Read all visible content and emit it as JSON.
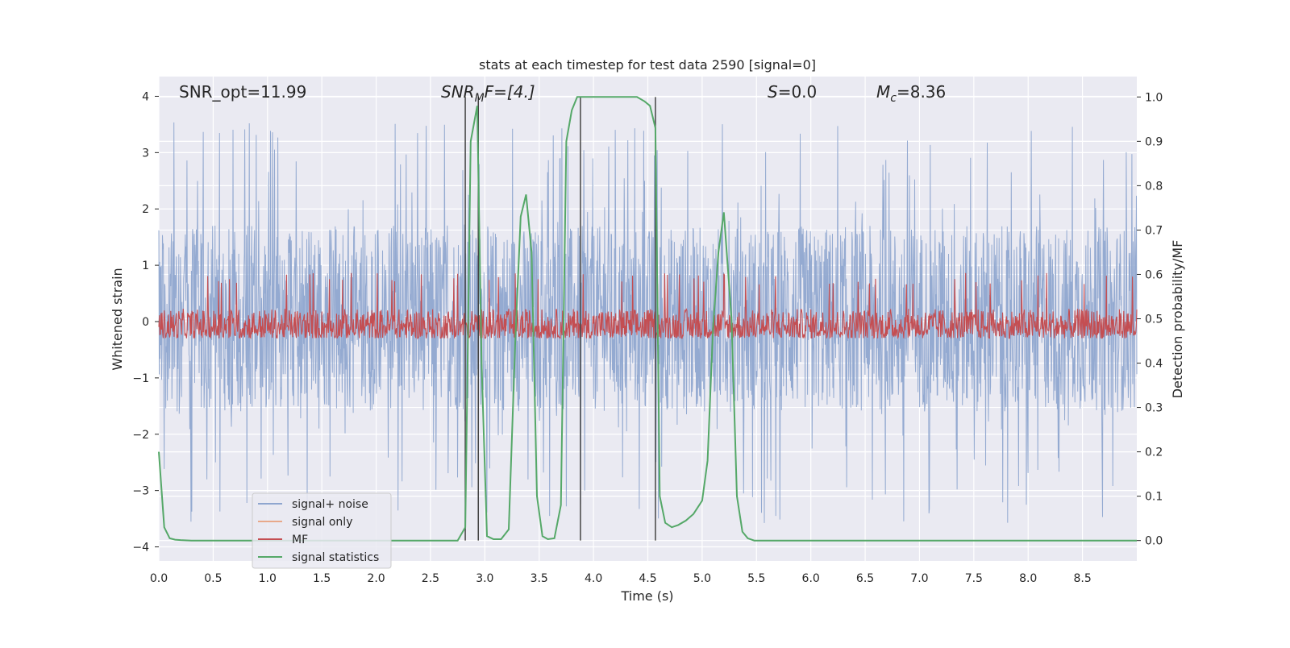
{
  "chart_data": {
    "type": "line",
    "title": "stats at each timestep for test data 2590 [signal=0]",
    "xlabel": "Time (s)",
    "ylabel": "Whitened strain",
    "y2label": "Detection probability/MF",
    "xlim": [
      0.0,
      9.0
    ],
    "ylim": [
      -4.25,
      4.35
    ],
    "y2lim": [
      -0.046,
      1.046
    ],
    "xticks": [
      "0.0",
      "0.5",
      "1.0",
      "1.5",
      "2.0",
      "2.5",
      "3.0",
      "3.5",
      "4.0",
      "4.5",
      "5.0",
      "5.5",
      "6.0",
      "6.5",
      "7.0",
      "7.5",
      "8.0",
      "8.5"
    ],
    "xtick_values": [
      0.0,
      0.5,
      1.0,
      1.5,
      2.0,
      2.5,
      3.0,
      3.5,
      4.0,
      4.5,
      5.0,
      5.5,
      6.0,
      6.5,
      7.0,
      7.5,
      8.0,
      8.5
    ],
    "yticks": [
      "4",
      "3",
      "2",
      "1",
      "0",
      "−1",
      "−2",
      "−3",
      "−4"
    ],
    "ytick_values": [
      4,
      3,
      2,
      1,
      0,
      -1,
      -2,
      -3,
      -4
    ],
    "y2ticks": [
      "1.0",
      "0.9",
      "0.8",
      "0.7",
      "0.6",
      "0.5",
      "0.4",
      "0.3",
      "0.2",
      "0.1",
      "0.0"
    ],
    "y2tick_values": [
      1.0,
      0.9,
      0.8,
      0.7,
      0.6,
      0.5,
      0.4,
      0.3,
      0.2,
      0.1,
      0.0
    ],
    "grid": true,
    "legend_position": "lower-left",
    "annotations": {
      "snr_opt": "SNR_opt=11.99",
      "snr_mf_main": "SNR",
      "snr_mf_sub": "M",
      "snr_mf_rest": "F=[4.]",
      "s_var": "S",
      "s_rest": "=0.0",
      "mc_main": "M",
      "mc_sub": "c",
      "mc_rest": "=8.36"
    },
    "vlines": [
      2.82,
      2.94,
      3.88,
      4.57
    ],
    "series": [
      {
        "name": "signal+ noise",
        "color": "#8fa6cf",
        "envelope": {
          "min": -3.6,
          "max": 3.55,
          "typical_low": -1.6,
          "typical_high": 1.7
        }
      },
      {
        "name": "signal only",
        "color": "#e8a98a",
        "values": []
      },
      {
        "name": "MF",
        "color": "#c44e52",
        "envelope": {
          "min": 0.0,
          "max": 0.95,
          "typical_low": 0.05,
          "typical_high": 0.6
        }
      },
      {
        "name": "signal statistics",
        "color": "#55a868",
        "axis": "right",
        "x": [
          0.0,
          0.05,
          0.1,
          0.15,
          0.2,
          0.3,
          0.5,
          1.0,
          1.5,
          2.0,
          2.5,
          2.75,
          2.82,
          2.87,
          2.93,
          2.97,
          3.02,
          3.08,
          3.15,
          3.22,
          3.28,
          3.33,
          3.38,
          3.43,
          3.48,
          3.53,
          3.58,
          3.64,
          3.7,
          3.75,
          3.8,
          3.85,
          3.9,
          3.94,
          3.97,
          4.0,
          4.2,
          4.4,
          4.47,
          4.52,
          4.57,
          4.61,
          4.66,
          4.72,
          4.78,
          4.85,
          4.92,
          5.0,
          5.05,
          5.1,
          5.15,
          5.2,
          5.27,
          5.32,
          5.37,
          5.42,
          5.48,
          5.52,
          5.6,
          6.0,
          7.0,
          8.0,
          9.0
        ],
        "values": [
          0.2,
          0.03,
          0.005,
          0.002,
          0.001,
          0.0,
          0.0,
          0.0,
          0.0,
          0.0,
          0.0,
          0.0,
          0.03,
          0.9,
          0.98,
          0.4,
          0.01,
          0.003,
          0.003,
          0.025,
          0.45,
          0.73,
          0.78,
          0.65,
          0.1,
          0.01,
          0.003,
          0.005,
          0.08,
          0.9,
          0.97,
          1.0,
          1.0,
          1.0,
          1.0,
          1.0,
          1.0,
          1.0,
          0.99,
          0.98,
          0.93,
          0.1,
          0.04,
          0.03,
          0.035,
          0.045,
          0.06,
          0.09,
          0.18,
          0.48,
          0.65,
          0.74,
          0.5,
          0.1,
          0.02,
          0.005,
          0.0,
          0.0,
          0.0,
          0.0,
          0.0,
          0.0,
          0.0
        ]
      }
    ]
  }
}
